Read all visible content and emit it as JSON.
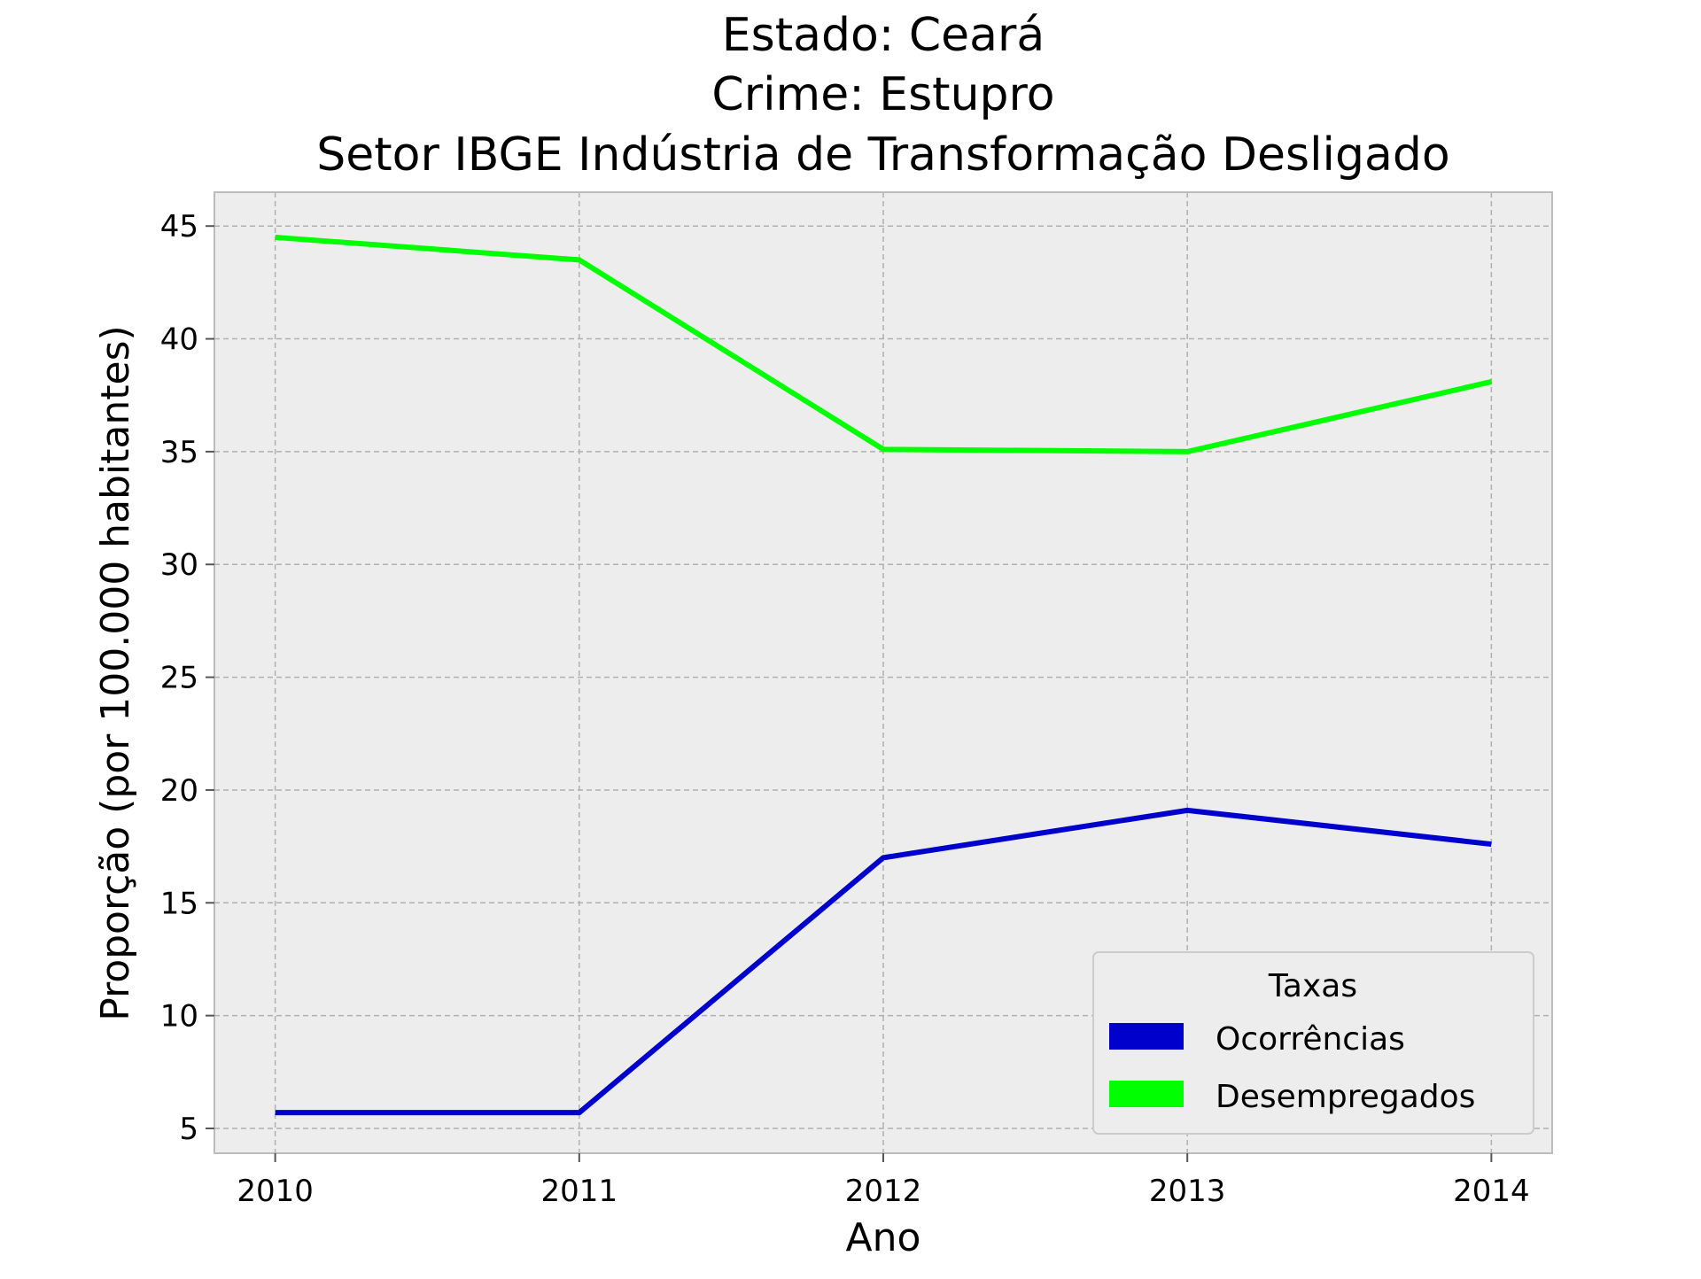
{
  "chart_data": {
    "type": "line",
    "title_lines": [
      "Estado: Ceará",
      "Crime: Estupro",
      "Setor IBGE  Indústria de Transformação   Desligado"
    ],
    "xlabel": "Ano",
    "ylabel": "Proporção (por 100.000 habitantes)",
    "x": [
      2010,
      2011,
      2012,
      2013,
      2014
    ],
    "x_tick_labels": [
      "2010",
      "2011",
      "2012",
      "2013",
      "2014"
    ],
    "y_ticks": [
      5,
      10,
      15,
      20,
      25,
      30,
      35,
      40,
      45
    ],
    "ylim": [
      3.9,
      46.5
    ],
    "xlim": [
      2009.8,
      2014.2
    ],
    "grid": true,
    "background": "#ededed",
    "legend": {
      "title": "Taxas",
      "placement": "lower-right"
    },
    "series": [
      {
        "name": "Ocorrências",
        "color": "#0000cc",
        "values": [
          5.7,
          5.7,
          17.0,
          19.1,
          17.6
        ]
      },
      {
        "name": "Desempregados",
        "color": "#00ff00",
        "values": [
          44.5,
          43.5,
          35.1,
          35.0,
          38.1
        ]
      }
    ]
  }
}
